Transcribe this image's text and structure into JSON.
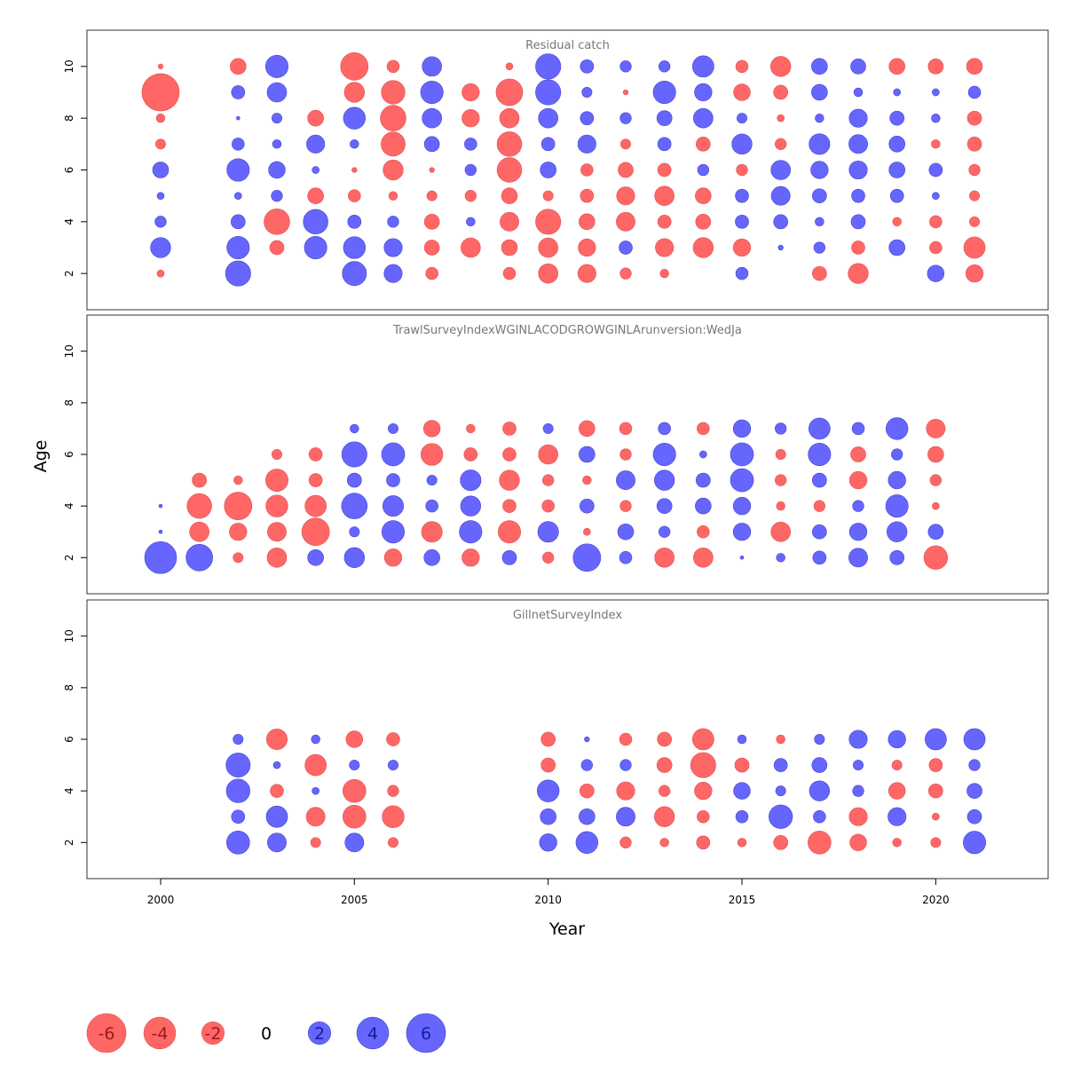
{
  "chart_data": {
    "type": "bubble",
    "xlabel": "Year",
    "ylabel": "Age",
    "xlim": [
      1998.1,
      2022.9
    ],
    "ylim": [
      0.6,
      11.4
    ],
    "xticks": [
      2000,
      2005,
      2010,
      2015,
      2020
    ],
    "yticks": [
      2,
      4,
      6,
      8,
      10
    ],
    "colors": {
      "positive": "#6666ff",
      "negative": "#ff6666",
      "stroke_positive": "#4444cc",
      "stroke_negative": "#dd5555"
    },
    "size_scale": {
      "max_abs": 6,
      "max_radius": 22
    },
    "legend": {
      "values": [
        -6,
        -4,
        -2,
        0,
        2,
        4,
        6
      ],
      "labels": [
        "-6",
        "-4",
        "-2",
        "0",
        "2",
        "4",
        "6"
      ]
    },
    "panels": [
      {
        "title": "Residual catch",
        "years": [
          2000,
          2002,
          2003,
          2004,
          2005,
          2006,
          2007,
          2008,
          2009,
          2010,
          2011,
          2012,
          2013,
          2014,
          2015,
          2016,
          2017,
          2018,
          2019,
          2020,
          2021
        ],
        "ages": [
          2,
          3,
          4,
          5,
          6,
          7,
          8,
          9,
          10
        ],
        "residuals": [
          [
            -0.2,
            1.6,
            0.5,
            0.2,
            1.0,
            -0.4,
            -0.3,
            -5.5,
            -0.1
          ],
          [
            2.5,
            2.0,
            0.8,
            0.2,
            2.0,
            0.6,
            0.05,
            0.7,
            -1.0
          ],
          [
            0,
            -0.8,
            -2.6,
            0.5,
            1.1,
            0.3,
            0.4,
            1.5,
            2.0
          ],
          [
            0,
            2.0,
            2.4,
            -1.0,
            0.2,
            1.3,
            -1.0,
            0,
            0
          ],
          [
            2.3,
            1.9,
            0.7,
            -0.6,
            -0.1,
            0.3,
            1.9,
            -1.6,
            -3.0
          ],
          [
            1.3,
            1.3,
            0.5,
            -0.3,
            -1.6,
            -2.3,
            -2.6,
            -2.2,
            -0.6
          ],
          [
            -0.6,
            -0.9,
            -0.9,
            -0.4,
            -0.1,
            0.9,
            1.5,
            2.0,
            1.5
          ],
          [
            0,
            -1.5,
            0.3,
            -0.5,
            0.5,
            0.6,
            -1.2,
            -1.2,
            0
          ],
          [
            -0.6,
            -1.0,
            -1.4,
            -1.0,
            -2.4,
            -2.4,
            -1.5,
            -2.8,
            -0.2
          ],
          [
            -1.5,
            -1.5,
            -2.5,
            -0.4,
            1.0,
            0.7,
            1.5,
            2.5,
            2.5
          ],
          [
            -1.3,
            -1.2,
            -1.0,
            -0.7,
            -0.6,
            1.3,
            0.7,
            0.4,
            0.7
          ],
          [
            -0.5,
            0.7,
            -1.4,
            -1.3,
            -0.9,
            -0.4,
            0.5,
            -0.1,
            0.5
          ],
          [
            -0.3,
            -1.3,
            -0.7,
            -1.5,
            -0.7,
            0.7,
            0.9,
            2.0,
            0.5
          ],
          [
            0,
            -1.6,
            -0.9,
            -1.0,
            0.5,
            -0.8,
            1.5,
            1.2,
            1.8
          ],
          [
            0.6,
            -1.2,
            0.7,
            0.7,
            -0.5,
            1.6,
            0.4,
            -1.1,
            -0.6
          ],
          [
            0,
            0.1,
            0.8,
            1.4,
            1.5,
            -0.5,
            -0.2,
            -0.8,
            -1.6
          ],
          [
            -0.8,
            0.5,
            0.3,
            0.8,
            1.2,
            1.7,
            0.3,
            1.0,
            1.0
          ],
          [
            -1.6,
            -0.7,
            0.8,
            0.7,
            1.3,
            1.4,
            1.3,
            0.3,
            0.9
          ],
          [
            0,
            1.0,
            -0.3,
            0.7,
            1.0,
            1.0,
            0.8,
            0.2,
            -1.0
          ],
          [
            1.1,
            -0.6,
            -0.6,
            0.2,
            0.7,
            -0.3,
            0.3,
            0.2,
            -0.9
          ],
          [
            -1.2,
            -1.8,
            -0.4,
            -0.4,
            -0.5,
            -0.8,
            -0.8,
            0.6,
            -1.0
          ]
        ]
      },
      {
        "title": "TrawlSurveyIndexWGINLACODGROWGINLArunversion:WedJa",
        "years": [
          2000,
          2001,
          2002,
          2003,
          2004,
          2005,
          2006,
          2007,
          2008,
          2009,
          2010,
          2011,
          2012,
          2013,
          2014,
          2015,
          2016,
          2017,
          2018,
          2019,
          2020
        ],
        "ages": [
          2,
          3,
          4,
          5,
          6,
          7
        ],
        "residuals": [
          [
            4.0,
            0.05,
            0.05,
            null,
            null,
            null
          ],
          [
            2.8,
            -1.5,
            -2.4,
            -0.8,
            null,
            null
          ],
          [
            -0.4,
            -1.2,
            -3.0,
            -0.3,
            null,
            null
          ],
          [
            -1.5,
            -1.4,
            -1.9,
            -2.0,
            -0.4,
            null
          ],
          [
            1.0,
            -3.0,
            -1.8,
            -0.7,
            -0.7,
            null
          ],
          [
            1.6,
            0.4,
            2.6,
            0.8,
            2.5,
            0.3
          ],
          [
            -1.2,
            2.0,
            1.7,
            0.7,
            2.1,
            0.4
          ],
          [
            1.0,
            -1.7,
            0.6,
            0.4,
            -1.9,
            -1.1
          ],
          [
            -1.2,
            2.0,
            1.6,
            1.7,
            -0.7,
            -0.3
          ],
          [
            0.8,
            -2.0,
            -0.7,
            -1.6,
            -0.7,
            -0.7
          ],
          [
            -0.5,
            1.7,
            -0.6,
            -0.5,
            -1.5,
            0.4
          ],
          [
            3.0,
            -0.2,
            0.8,
            -0.3,
            1.0,
            -1.0
          ],
          [
            0.6,
            1.0,
            -0.5,
            1.4,
            -0.5,
            -0.6
          ],
          [
            -1.5,
            0.5,
            0.9,
            1.6,
            2.0,
            0.6
          ],
          [
            -1.5,
            -0.6,
            1.0,
            0.8,
            0.2,
            -0.6
          ],
          [
            0.05,
            1.2,
            1.2,
            2.1,
            2.1,
            1.2
          ],
          [
            0.3,
            -1.5,
            -0.3,
            -0.5,
            -0.4,
            0.5
          ],
          [
            0.7,
            0.8,
            -0.5,
            0.8,
            2.0,
            1.8
          ],
          [
            1.4,
            1.2,
            0.5,
            -1.2,
            -0.9,
            0.6
          ],
          [
            0.8,
            1.6,
            2.0,
            1.2,
            0.5,
            1.9
          ],
          [
            -2.2,
            0.9,
            -0.2,
            -0.5,
            -1.0,
            -1.4
          ]
        ]
      },
      {
        "title": "GillnetSurveyIndex",
        "years": [
          2002,
          2003,
          2004,
          2005,
          2006,
          2010,
          2011,
          2012,
          2013,
          2014,
          2015,
          2016,
          2017,
          2018,
          2019,
          2020,
          2021
        ],
        "ages": [
          2,
          3,
          4,
          5,
          6
        ],
        "residuals": [
          [
            2.1,
            0.7,
            2.2,
            2.3,
            0.4
          ],
          [
            1.4,
            1.8,
            -0.7,
            0.2,
            -1.7
          ],
          [
            -0.4,
            -1.4,
            0.2,
            -1.8,
            0.3
          ],
          [
            1.4,
            -2.1,
            -2.1,
            0.4,
            -1.1
          ],
          [
            -0.4,
            -1.9,
            -0.5,
            0.4,
            -0.7
          ],
          [
            1.2,
            1.0,
            1.9,
            -0.8,
            -0.8
          ],
          [
            1.9,
            1.0,
            -0.8,
            0.5,
            0.1
          ],
          [
            -0.5,
            1.4,
            -1.3,
            0.5,
            -0.6
          ],
          [
            -0.3,
            -1.6,
            -0.5,
            -0.9,
            -0.8
          ],
          [
            -0.7,
            -0.6,
            -1.2,
            -2.5,
            -1.8
          ],
          [
            -0.3,
            0.6,
            1.1,
            -0.8,
            0.3
          ],
          [
            -0.8,
            2.2,
            0.4,
            0.7,
            -0.3
          ],
          [
            -2.1,
            0.6,
            1.6,
            0.9,
            0.4
          ],
          [
            -1.1,
            -1.3,
            0.5,
            0.4,
            1.3
          ],
          [
            -0.3,
            1.3,
            -1.1,
            -0.4,
            1.2
          ],
          [
            -0.4,
            -0.2,
            -0.8,
            -0.7,
            1.8
          ],
          [
            2.0,
            0.8,
            0.9,
            0.5,
            1.8
          ]
        ]
      }
    ]
  }
}
